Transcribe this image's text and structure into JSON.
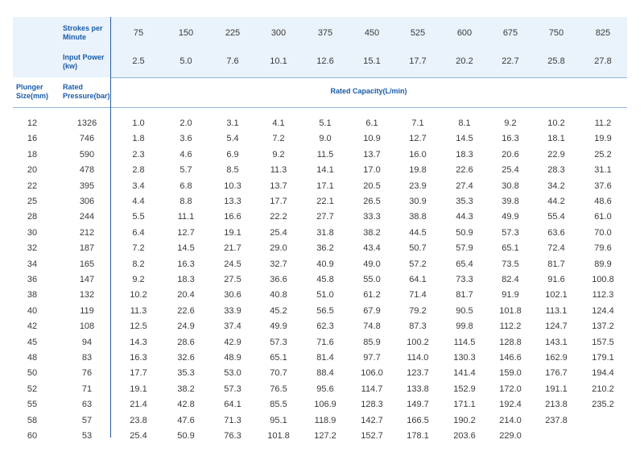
{
  "header": {
    "strokes_label": "Strokes per Minute",
    "strokes": [
      "75",
      "150",
      "225",
      "300",
      "375",
      "450",
      "525",
      "600",
      "675",
      "750",
      "825"
    ],
    "power_label": "Input Power (kw)",
    "power": [
      "2.5",
      "5.0",
      "7.6",
      "10.1",
      "12.6",
      "15.1",
      "17.7",
      "20.2",
      "22.7",
      "25.8",
      "27.8"
    ],
    "plunger_label": "Plunger Size(mm)",
    "pressure_label": "Rated Pressure(bar)",
    "capacity_label": "Rated Capacity(L/min)"
  },
  "rows": [
    {
      "size": "12",
      "pressure": "1326",
      "values": [
        "1.0",
        "2.0",
        "3.1",
        "4.1",
        "5.1",
        "6.1",
        "7.1",
        "8.1",
        "9.2",
        "10.2",
        "11.2"
      ]
    },
    {
      "size": "16",
      "pressure": "746",
      "values": [
        "1.8",
        "3.6",
        "5.4",
        "7.2",
        "9.0",
        "10.9",
        "12.7",
        "14.5",
        "16.3",
        "18.1",
        "19.9"
      ]
    },
    {
      "size": "18",
      "pressure": "590",
      "values": [
        "2.3",
        "4.6",
        "6.9",
        "9.2",
        "11.5",
        "13.7",
        "16.0",
        "18.3",
        "20.6",
        "22.9",
        "25.2"
      ]
    },
    {
      "size": "20",
      "pressure": "478",
      "values": [
        "2.8",
        "5.7",
        "8.5",
        "11.3",
        "14.1",
        "17.0",
        "19.8",
        "22.6",
        "25.4",
        "28.3",
        "31.1"
      ]
    },
    {
      "size": "22",
      "pressure": "395",
      "values": [
        "3.4",
        "6.8",
        "10.3",
        "13.7",
        "17.1",
        "20.5",
        "23.9",
        "27.4",
        "30.8",
        "34.2",
        "37.6"
      ]
    },
    {
      "size": "25",
      "pressure": "306",
      "values": [
        "4.4",
        "8.8",
        "13.3",
        "17.7",
        "22.1",
        "26.5",
        "30.9",
        "35.3",
        "39.8",
        "44.2",
        "48.6"
      ]
    },
    {
      "size": "28",
      "pressure": "244",
      "values": [
        "5.5",
        "11.1",
        "16.6",
        "22.2",
        "27.7",
        "33.3",
        "38.8",
        "44.3",
        "49.9",
        "55.4",
        "61.0"
      ]
    },
    {
      "size": "30",
      "pressure": "212",
      "values": [
        "6.4",
        "12.7",
        "19.1",
        "25.4",
        "31.8",
        "38.2",
        "44.5",
        "50.9",
        "57.3",
        "63.6",
        "70.0"
      ]
    },
    {
      "size": "32",
      "pressure": "187",
      "values": [
        "7.2",
        "14.5",
        "21.7",
        "29.0",
        "36.2",
        "43.4",
        "50.7",
        "57.9",
        "65.1",
        "72.4",
        "79.6"
      ]
    },
    {
      "size": "34",
      "pressure": "165",
      "values": [
        "8.2",
        "16.3",
        "24.5",
        "32.7",
        "40.9",
        "49.0",
        "57.2",
        "65.4",
        "73.5",
        "81.7",
        "89.9"
      ]
    },
    {
      "size": "36",
      "pressure": "147",
      "values": [
        "9.2",
        "18.3",
        "27.5",
        "36.6",
        "45.8",
        "55.0",
        "64.1",
        "73.3",
        "82.4",
        "91.6",
        "100.8"
      ]
    },
    {
      "size": "38",
      "pressure": "132",
      "values": [
        "10.2",
        "20.4",
        "30.6",
        "40.8",
        "51.0",
        "61.2",
        "71.4",
        "81.7",
        "91.9",
        "102.1",
        "112.3"
      ]
    },
    {
      "size": "40",
      "pressure": "119",
      "values": [
        "11.3",
        "22.6",
        "33.9",
        "45.2",
        "56.5",
        "67.9",
        "79.2",
        "90.5",
        "101.8",
        "113.1",
        "124.4"
      ]
    },
    {
      "size": "42",
      "pressure": "108",
      "values": [
        "12.5",
        "24.9",
        "37.4",
        "49.9",
        "62.3",
        "74.8",
        "87.3",
        "99.8",
        "112.2",
        "124.7",
        "137.2"
      ]
    },
    {
      "size": "45",
      "pressure": "94",
      "values": [
        "14.3",
        "28.6",
        "42.9",
        "57.3",
        "71.6",
        "85.9",
        "100.2",
        "114.5",
        "128.8",
        "143.1",
        "157.5"
      ]
    },
    {
      "size": "48",
      "pressure": "83",
      "values": [
        "16.3",
        "32.6",
        "48.9",
        "65.1",
        "81.4",
        "97.7",
        "114.0",
        "130.3",
        "146.6",
        "162.9",
        "179.1"
      ]
    },
    {
      "size": "50",
      "pressure": "76",
      "values": [
        "17.7",
        "35.3",
        "53.0",
        "70.7",
        "88.4",
        "106.0",
        "123.7",
        "141.4",
        "159.0",
        "176.7",
        "194.4"
      ]
    },
    {
      "size": "52",
      "pressure": "71",
      "values": [
        "19.1",
        "38.2",
        "57.3",
        "76.5",
        "95.6",
        "114.7",
        "133.8",
        "152.9",
        "172.0",
        "191.1",
        "210.2"
      ]
    },
    {
      "size": "55",
      "pressure": "63",
      "values": [
        "21.4",
        "42.8",
        "64.1",
        "85.5",
        "106.9",
        "128.3",
        "149.7",
        "171.1",
        "192.4",
        "213.8",
        "235.2"
      ]
    },
    {
      "size": "58",
      "pressure": "57",
      "values": [
        "23.8",
        "47.6",
        "71.3",
        "95.1",
        "118.9",
        "142.7",
        "166.5",
        "190.2",
        "214.0",
        "237.8",
        ""
      ]
    },
    {
      "size": "60",
      "pressure": "53",
      "values": [
        "25.4",
        "50.9",
        "76.3",
        "101.8",
        "127.2",
        "152.7",
        "178.1",
        "203.6",
        "229.0",
        "",
        ""
      ]
    }
  ]
}
